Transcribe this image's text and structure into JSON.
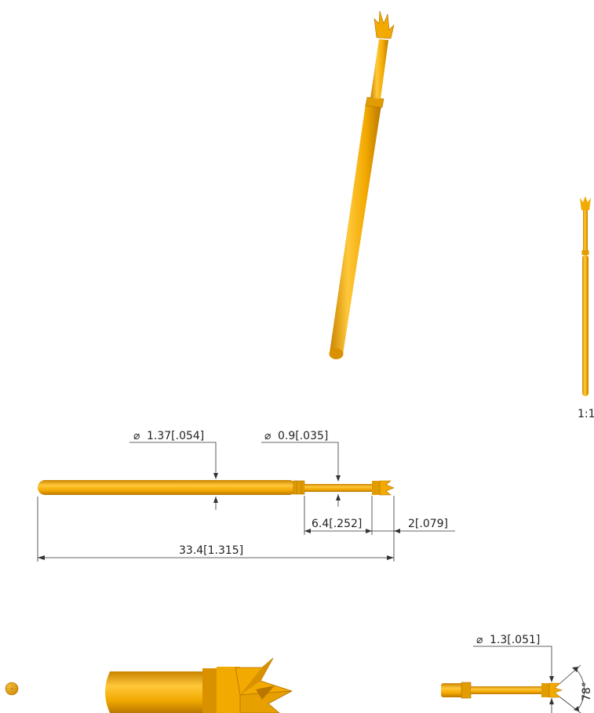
{
  "colors": {
    "gold": "#f2a900",
    "gold_dark": "#c98300",
    "gold_light": "#ffc83a",
    "line": "#333333"
  },
  "scale_label": "1:1",
  "dimensions": {
    "barrel_diameter": {
      "symbol": "⌀",
      "text": "1.37[.054]"
    },
    "plunger_diameter": {
      "symbol": "⌀",
      "text": "0.9[.035]"
    },
    "plunger_length": "6.4[.252]",
    "tip_length": "2[.079]",
    "overall_length": "33.4[1.315]",
    "tip_diameter": {
      "symbol": "⌀",
      "text": "1.3[.051]"
    },
    "tip_angle": "78°"
  }
}
